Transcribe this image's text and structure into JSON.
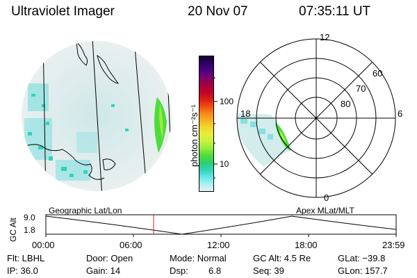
{
  "header": {
    "title": "Ultraviolet Imager",
    "date": "20 Nov 07",
    "time": "07:35:11 UT"
  },
  "colorbar": {
    "label": "photon cm⁻²s⁻¹",
    "ticks": [
      "100",
      "10"
    ],
    "colors": [
      "#1a0033",
      "#2b0060",
      "#4b0080",
      "#7a0070",
      "#a00040",
      "#c0002a",
      "#d81b1b",
      "#ee4a10",
      "#f7841a",
      "#f8b020",
      "#f2d630",
      "#e6ee3a",
      "#c8f040",
      "#90ec3e",
      "#4edc3c",
      "#2ad06a",
      "#30d4b8",
      "#66e6e6",
      "#a9f0f0",
      "#e6f0f0"
    ]
  },
  "geo_panel": {
    "label": "Geographic Lat/Lon"
  },
  "polar_panel": {
    "label": "Apex MLat/MLT",
    "mlt_labels": {
      "top": "12",
      "left": "18",
      "right": "6",
      "bottom": "0"
    },
    "lat_labels": [
      "60",
      "70",
      "80"
    ]
  },
  "altitude_plot": {
    "ylabel": "GC Alt",
    "yticks": [
      "9.0",
      "1.8"
    ],
    "xticks": [
      "00:00",
      "06:00",
      "12:00",
      "18:00",
      "23:59"
    ],
    "marker_color": "#cc2222"
  },
  "status": {
    "filter": "Flt: LBHL",
    "ip": "IP: 36.0",
    "door": "Door: Open",
    "gain": "Gain: 14",
    "mode": "Mode: Normal",
    "dsp_label": "Dsp:",
    "dsp_value": "6.8",
    "gc_alt": "GC Alt: 4.5 Re",
    "seq": "Seq: 39",
    "glat": "GLat: −39.8",
    "glon": "GLon: 157.7"
  }
}
